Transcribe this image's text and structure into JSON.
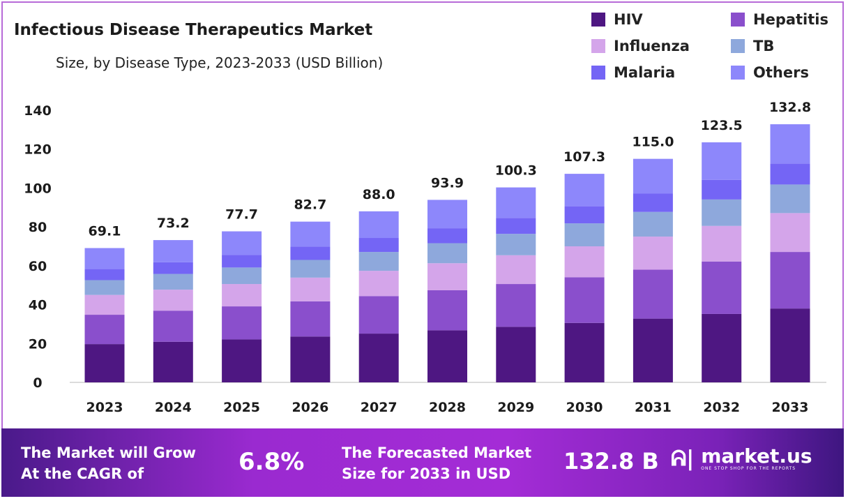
{
  "chart_data": {
    "type": "bar",
    "stacked": true,
    "title": "Infectious Disease Therapeutics Market",
    "subtitle": "Size, by Disease Type, 2023-2033 (USD Billion)",
    "xlabel": "",
    "ylabel": "",
    "ylim": [
      0,
      140
    ],
    "yticks": [
      "0",
      "20",
      "40",
      "60",
      "80",
      "100",
      "120",
      "140"
    ],
    "legend_position": "top-right",
    "categories": [
      "2023",
      "2024",
      "2025",
      "2026",
      "2027",
      "2028",
      "2029",
      "2030",
      "2031",
      "2032",
      "2033"
    ],
    "totals": [
      "69.1",
      "73.2",
      "77.7",
      "82.7",
      "88.0",
      "93.9",
      "100.3",
      "107.3",
      "115.0",
      "123.5",
      "132.8"
    ],
    "series": [
      {
        "name": "HIV",
        "color": "#4e1782",
        "values": [
          19.7,
          20.9,
          22.1,
          23.6,
          25.1,
          26.8,
          28.6,
          30.6,
          32.8,
          35.2,
          38.0
        ]
      },
      {
        "name": "Hepatitis",
        "color": "#8a4fcc",
        "values": [
          15.1,
          16.0,
          17.0,
          18.1,
          19.3,
          20.6,
          22.0,
          23.5,
          25.2,
          27.0,
          29.1
        ]
      },
      {
        "name": "Influenza",
        "color": "#d4a5ea",
        "values": [
          10.2,
          10.8,
          11.5,
          12.2,
          13.0,
          13.9,
          14.8,
          15.9,
          17.0,
          18.3,
          20.0
        ]
      },
      {
        "name": "TB",
        "color": "#8ea8dc",
        "values": [
          7.6,
          8.1,
          8.5,
          9.1,
          9.7,
          10.3,
          11.0,
          11.8,
          12.7,
          13.6,
          14.7
        ]
      },
      {
        "name": "Malaria",
        "color": "#7465f5",
        "values": [
          5.7,
          6.0,
          6.4,
          6.8,
          7.2,
          7.7,
          8.2,
          8.8,
          9.4,
          10.1,
          10.8
        ]
      },
      {
        "name": "Others",
        "color": "#8d87fb",
        "values": [
          10.8,
          11.4,
          12.2,
          12.9,
          13.7,
          14.6,
          15.7,
          16.7,
          17.9,
          19.3,
          20.2
        ]
      }
    ]
  },
  "footer": {
    "cagr_label_1": "The Market will Grow",
    "cagr_label_2": "At the CAGR of",
    "cagr_value": "6.8%",
    "forecast_label_1": "The Forecasted Market",
    "forecast_label_2": "Size for 2033 in USD",
    "forecast_value": "132.8 B",
    "brand": "market.us",
    "tagline": "ONE STOP SHOP FOR THE REPORTS"
  }
}
